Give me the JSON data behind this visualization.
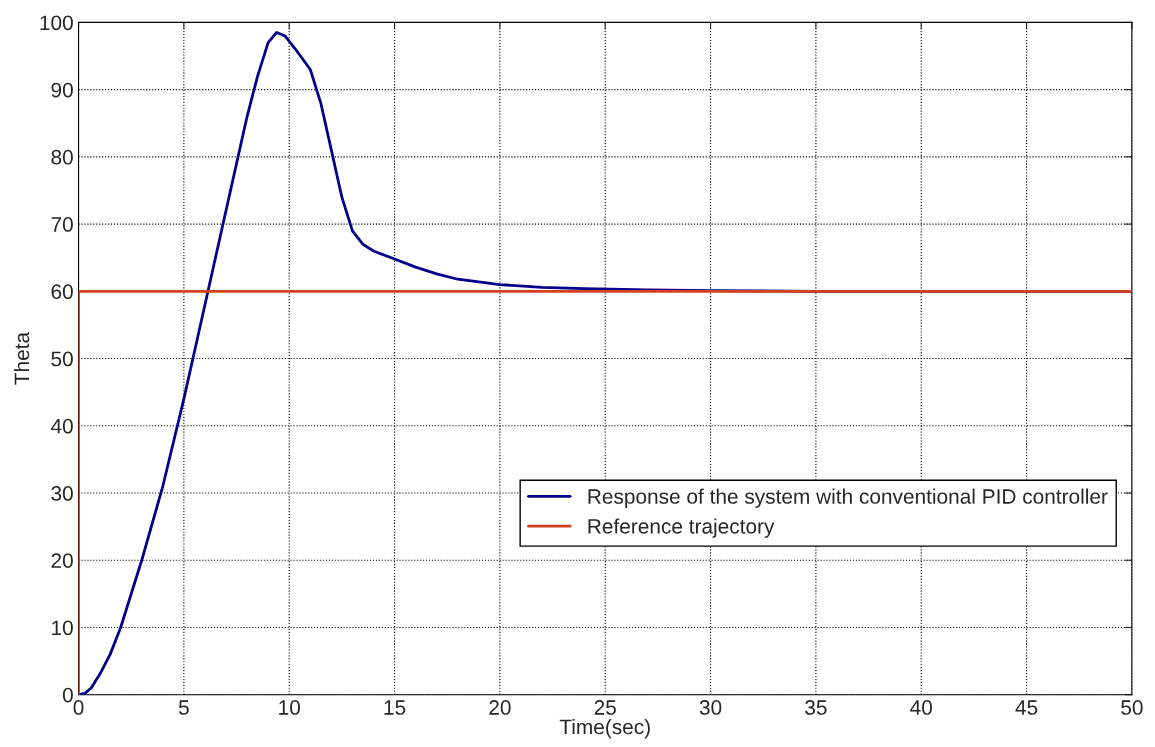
{
  "chart_data": {
    "type": "line",
    "xlabel": "Time(sec)",
    "ylabel": "Theta",
    "xlim": [
      0,
      50
    ],
    "ylim": [
      0,
      100
    ],
    "xticks": [
      0,
      5,
      10,
      15,
      20,
      25,
      30,
      35,
      40,
      45,
      50
    ],
    "yticks": [
      0,
      10,
      20,
      30,
      40,
      50,
      60,
      70,
      80,
      90,
      100
    ],
    "grid": true,
    "legend": "center right",
    "line_style": "solid",
    "marker": "none",
    "series": [
      {
        "name": "Response of the system with conventional PID controller",
        "color": "#00008b",
        "x": [
          0,
          0.3,
          0.6,
          1,
          1.5,
          2,
          3,
          4,
          5,
          6,
          7,
          8,
          8.5,
          9,
          9.4,
          9.8,
          10.3,
          11,
          11.5,
          12,
          12.5,
          13,
          13.5,
          14,
          15,
          16,
          17,
          18,
          20,
          22,
          24,
          27,
          30,
          35,
          50
        ],
        "values": [
          0,
          0.2,
          1,
          3,
          6,
          10,
          20,
          31,
          44,
          58,
          72,
          86,
          92,
          97,
          98.5,
          98,
          96,
          93,
          88,
          81,
          74,
          69,
          67,
          66,
          64.8,
          63.6,
          62.6,
          61.8,
          61,
          60.6,
          60.4,
          60.2,
          60.1,
          60,
          60
        ]
      },
      {
        "name": "Reference trajectory",
        "color": "#d2421e",
        "x": [
          0,
          0,
          50
        ],
        "values": [
          0,
          60,
          60
        ]
      }
    ]
  }
}
